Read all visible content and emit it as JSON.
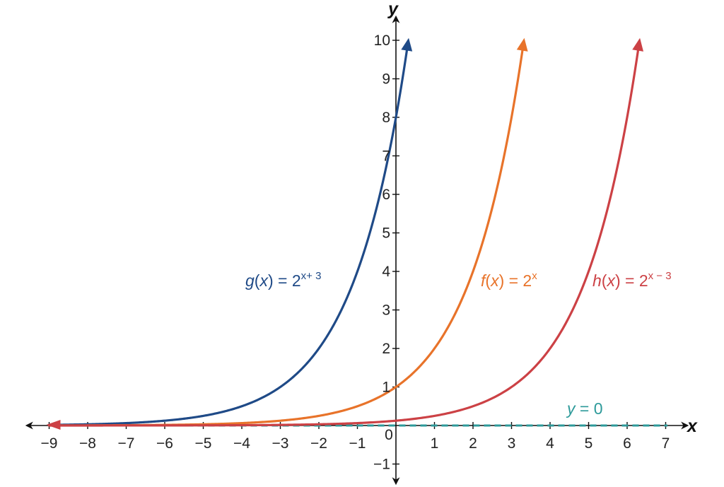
{
  "chart_data": {
    "type": "line",
    "title": "",
    "xlabel": "x",
    "ylabel": "y",
    "xlim": [
      -9,
      7
    ],
    "ylim": [
      -1,
      10
    ],
    "grid": false,
    "x_ticks": [
      -9,
      -8,
      -7,
      -6,
      -5,
      -4,
      -3,
      -2,
      -1,
      0,
      1,
      2,
      3,
      4,
      5,
      6,
      7
    ],
    "x_tick_labels": [
      "−9",
      "−8",
      "−7",
      "−6",
      "−5",
      "−4",
      "−3",
      "−2",
      "−1",
      "0",
      "1",
      "2",
      "3",
      "4",
      "5",
      "6",
      "7"
    ],
    "y_ticks": [
      -1,
      1,
      2,
      3,
      4,
      5,
      6,
      7,
      8,
      9,
      10
    ],
    "y_tick_labels": [
      "−1",
      "1",
      "2",
      "3",
      "4",
      "5",
      "6",
      "7",
      "8",
      "9",
      "10"
    ],
    "series": [
      {
        "id": "g",
        "label_parts": {
          "fname": "g",
          "open": "(",
          "var": "x",
          "close": ") = 2",
          "exp": "x+ 3"
        },
        "formula": "2^(x+3)",
        "shift": 3,
        "color": "#1f4a87",
        "x_start": -9,
        "x_end": 0.32,
        "x": [
          -9,
          -8,
          -7,
          -6,
          -5,
          -4,
          -3,
          -2,
          -1,
          0
        ],
        "y": [
          0.016,
          0.031,
          0.063,
          0.125,
          0.25,
          0.5,
          1,
          2,
          4,
          8
        ]
      },
      {
        "id": "f",
        "label_parts": {
          "fname": "f",
          "open": "(",
          "var": "x",
          "close": ") = 2",
          "exp": "x"
        },
        "formula": "2^x",
        "shift": 0,
        "color": "#e8732a",
        "x_start": -9,
        "x_end": 3.32,
        "x": [
          -9,
          -6,
          -3,
          -2,
          -1,
          0,
          1,
          2,
          3
        ],
        "y": [
          0.002,
          0.016,
          0.125,
          0.25,
          0.5,
          1,
          2,
          4,
          8
        ]
      },
      {
        "id": "h",
        "label_parts": {
          "fname": "h",
          "open": "(",
          "var": "x",
          "close": ") = 2",
          "exp": "x − 3"
        },
        "formula": "2^(x-3)",
        "shift": -3,
        "color": "#cc4145",
        "x_start": -9,
        "x_end": 6.32,
        "x": [
          -9,
          -3,
          0,
          1,
          2,
          3,
          4,
          5,
          6
        ],
        "y": [
          0.0002,
          0.016,
          0.125,
          0.25,
          0.5,
          1,
          2,
          4,
          8
        ]
      }
    ],
    "asymptote": {
      "label_parts": {
        "var": "y",
        "rest": " = 0"
      },
      "y": 0,
      "color": "#2d9a9a",
      "style": "dashed"
    }
  }
}
